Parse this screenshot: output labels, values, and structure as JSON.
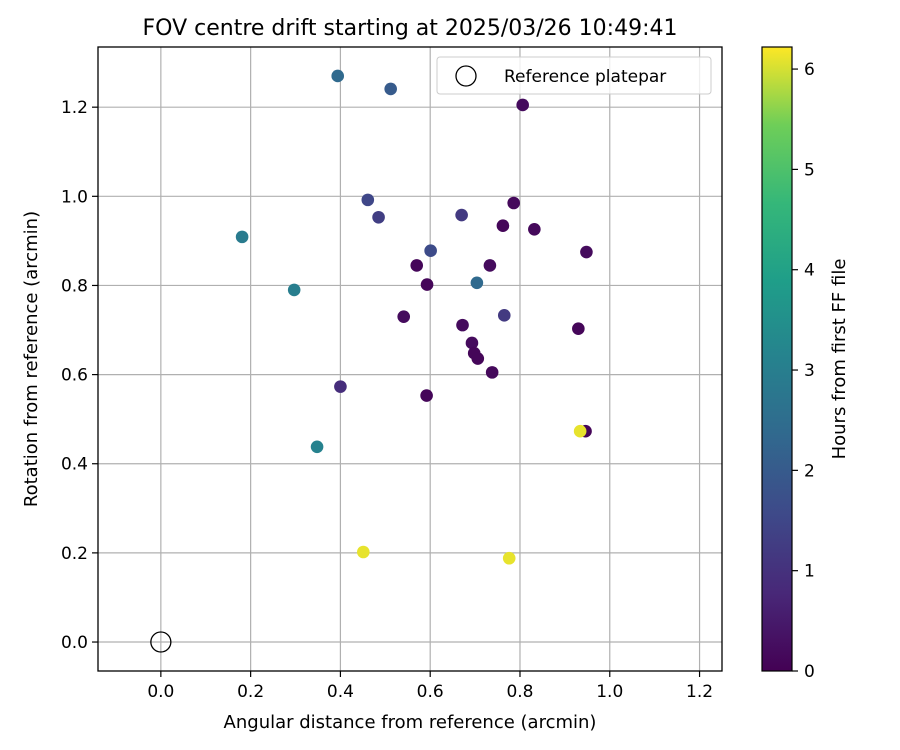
{
  "chart_data": {
    "type": "scatter",
    "title": "FOV centre drift starting at 2025/03/26 10:49:41",
    "xlabel": "Angular distance from reference (arcmin)",
    "ylabel": "Rotation from reference (arcmin)",
    "xlim": [
      -0.14,
      1.25
    ],
    "ylim": [
      -0.065,
      1.335
    ],
    "xticks": [
      0.0,
      0.2,
      0.4,
      0.6,
      0.8,
      1.0,
      1.2
    ],
    "yticks": [
      0.0,
      0.2,
      0.4,
      0.6,
      0.8,
      1.0,
      1.2
    ],
    "xtick_labels": [
      "0.0",
      "0.2",
      "0.4",
      "0.6",
      "0.8",
      "1.0",
      "1.2"
    ],
    "ytick_labels": [
      "0.0",
      "0.2",
      "0.4",
      "0.6",
      "0.8",
      "1.0",
      "1.2"
    ],
    "grid": true,
    "legend": {
      "placement": "top-right",
      "label": "Reference platepar"
    },
    "reference_point": {
      "x": 0.0,
      "y": 0.0
    },
    "colorbar": {
      "label": "Hours from first FF file",
      "range": [
        0,
        6.22
      ],
      "ticks": [
        0,
        1,
        2,
        3,
        4,
        5,
        6
      ],
      "tick_labels": [
        "0",
        "1",
        "2",
        "3",
        "4",
        "5",
        "6"
      ],
      "colormap": "viridis"
    },
    "points": [
      {
        "x": 0.806,
        "y": 1.205,
        "h": 0.2
      },
      {
        "x": 0.786,
        "y": 0.985,
        "h": 0.15
      },
      {
        "x": 0.762,
        "y": 0.934,
        "h": 0.1
      },
      {
        "x": 0.832,
        "y": 0.926,
        "h": 0.15
      },
      {
        "x": 0.948,
        "y": 0.875,
        "h": 0.2
      },
      {
        "x": 0.57,
        "y": 0.845,
        "h": 0.1
      },
      {
        "x": 0.733,
        "y": 0.845,
        "h": 0.2
      },
      {
        "x": 0.593,
        "y": 0.802,
        "h": 0.1
      },
      {
        "x": 0.541,
        "y": 0.73,
        "h": 0.2
      },
      {
        "x": 0.672,
        "y": 0.711,
        "h": 0.2
      },
      {
        "x": 0.93,
        "y": 0.703,
        "h": 0.1
      },
      {
        "x": 0.693,
        "y": 0.671,
        "h": 0.2
      },
      {
        "x": 0.698,
        "y": 0.648,
        "h": 0.1
      },
      {
        "x": 0.706,
        "y": 0.636,
        "h": 0.1
      },
      {
        "x": 0.738,
        "y": 0.605,
        "h": 0.15
      },
      {
        "x": 0.592,
        "y": 0.553,
        "h": 0.1
      },
      {
        "x": 0.946,
        "y": 0.473,
        "h": 0.1
      },
      {
        "x": 0.765,
        "y": 0.733,
        "h": 1.2
      },
      {
        "x": 0.4,
        "y": 0.573,
        "h": 0.9
      },
      {
        "x": 0.67,
        "y": 0.958,
        "h": 1.2
      },
      {
        "x": 0.485,
        "y": 0.953,
        "h": 1.3
      },
      {
        "x": 0.461,
        "y": 0.992,
        "h": 1.5
      },
      {
        "x": 0.601,
        "y": 0.878,
        "h": 1.6
      },
      {
        "x": 0.512,
        "y": 1.241,
        "h": 2.0
      },
      {
        "x": 0.394,
        "y": 1.27,
        "h": 2.4
      },
      {
        "x": 0.704,
        "y": 0.806,
        "h": 2.4
      },
      {
        "x": 0.181,
        "y": 0.909,
        "h": 2.9
      },
      {
        "x": 0.297,
        "y": 0.79,
        "h": 3.0
      },
      {
        "x": 0.348,
        "y": 0.438,
        "h": 3.1
      },
      {
        "x": 0.934,
        "y": 0.473,
        "h": 6.1
      },
      {
        "x": 0.451,
        "y": 0.202,
        "h": 6.1
      },
      {
        "x": 0.776,
        "y": 0.188,
        "h": 6.1
      }
    ]
  }
}
